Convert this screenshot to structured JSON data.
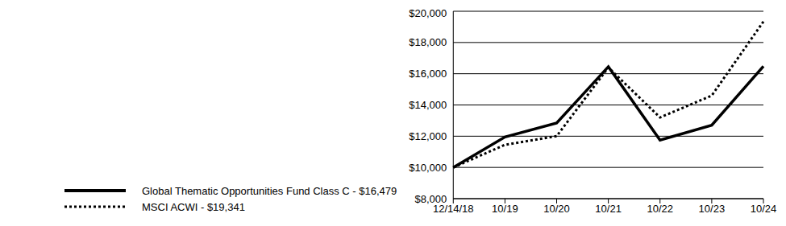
{
  "chart_data": {
    "type": "line",
    "categories": [
      "12/14/18",
      "10/19",
      "10/20",
      "10/21",
      "10/22",
      "10/23",
      "10/24"
    ],
    "series": [
      {
        "name": "Global Thematic Opportunities Fund Class C - $16,479",
        "color": "#000000",
        "line_style": "solid",
        "marker": "none",
        "values": [
          10000,
          11950,
          12850,
          16450,
          11750,
          12700,
          16479
        ]
      },
      {
        "name": "MSCI ACWI - $19,341",
        "color": "#000000",
        "line_style": "dotted",
        "marker": "none",
        "values": [
          10000,
          11450,
          12000,
          16400,
          13200,
          14600,
          19341
        ]
      }
    ],
    "ylim": [
      8000,
      20000
    ],
    "yticks": [
      {
        "value": 8000,
        "label": "$8,000"
      },
      {
        "value": 10000,
        "label": "$10,000"
      },
      {
        "value": 12000,
        "label": "$12,000"
      },
      {
        "value": 14000,
        "label": "$14,000"
      },
      {
        "value": 16000,
        "label": "$16,000"
      },
      {
        "value": 18000,
        "label": "$18,000"
      },
      {
        "value": 20000,
        "label": "$20,000"
      }
    ],
    "grid": true,
    "legend": "bottom-left"
  }
}
